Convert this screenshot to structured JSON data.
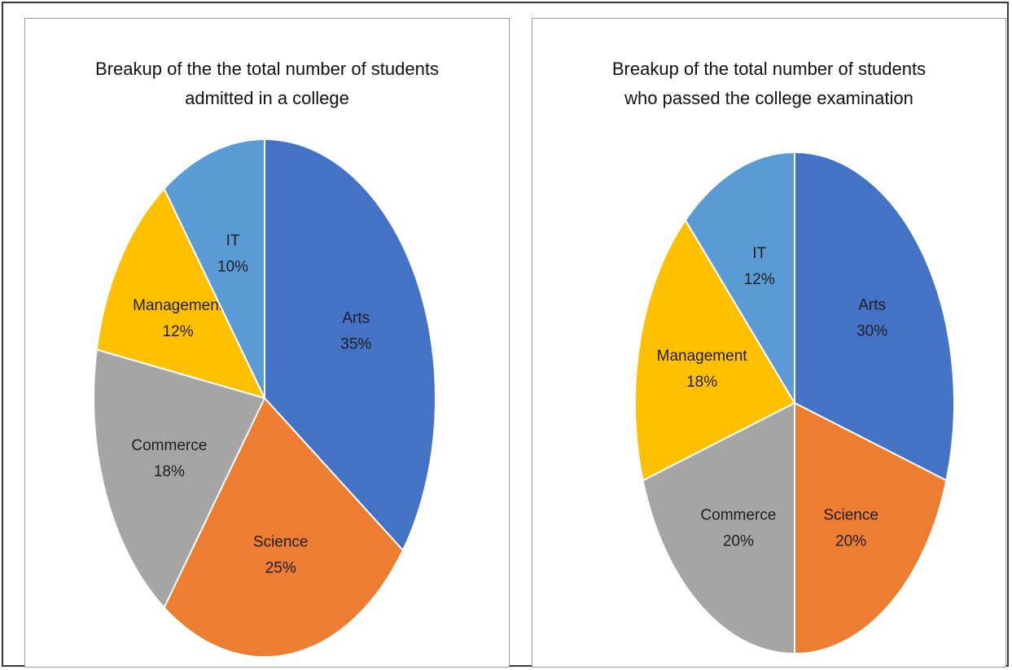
{
  "chart_data": [
    {
      "type": "pie",
      "title_lines": [
        "Breakup of the the total number of students",
        "admitted in a college"
      ],
      "categories": [
        "Arts",
        "Science",
        "Commerce",
        "Management",
        "IT"
      ],
      "values": [
        35,
        25,
        18,
        12,
        10
      ],
      "value_labels": [
        "35%",
        "25%",
        "18%",
        "12%",
        "10%"
      ],
      "colors": [
        "#4472C4",
        "#ED7D31",
        "#A5A5A5",
        "#FFC000",
        "#5B9BD5"
      ],
      "legend": "none"
    },
    {
      "type": "pie",
      "title_lines": [
        "Breakup of the total number of students",
        "who passed the college examination"
      ],
      "categories": [
        "Arts",
        "Science",
        "Commerce",
        "Management",
        "IT"
      ],
      "values": [
        30,
        20,
        20,
        18,
        12
      ],
      "value_labels": [
        "30%",
        "20%",
        "20%",
        "18%",
        "12%"
      ],
      "colors": [
        "#4472C4",
        "#ED7D31",
        "#A5A5A5",
        "#FFC000",
        "#5B9BD5"
      ],
      "legend": "none"
    }
  ]
}
